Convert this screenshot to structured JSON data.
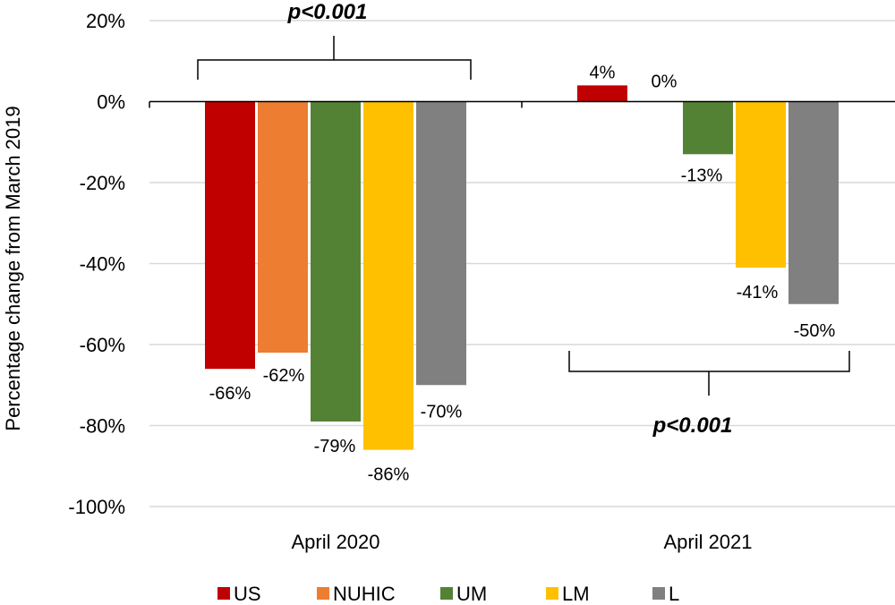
{
  "chart_data": {
    "type": "bar",
    "title": "",
    "xlabel": "",
    "ylabel": "Percentage change from March 2019",
    "ylim": [
      -100,
      20
    ],
    "yticks": [
      20,
      0,
      -20,
      -40,
      -60,
      -80,
      -100
    ],
    "ytick_labels": [
      "20%",
      "0%",
      "-20%",
      "-40%",
      "-60%",
      "-80%",
      "-100%"
    ],
    "grid": true,
    "legend_position": "bottom",
    "categories": [
      "April 2020",
      "April 2021"
    ],
    "series": [
      {
        "name": "US",
        "color": "#C00000",
        "values": [
          -66,
          4
        ],
        "labels": [
          "-66%",
          "4%"
        ]
      },
      {
        "name": "NUHIC",
        "color": "#ED7D31",
        "values": [
          -62,
          0
        ],
        "labels": [
          "-62%",
          "0%"
        ]
      },
      {
        "name": "UM",
        "color": "#548235",
        "values": [
          -79,
          -13
        ],
        "labels": [
          "-79%",
          "-13%"
        ]
      },
      {
        "name": "LM",
        "color": "#FFC000",
        "values": [
          -86,
          -41
        ],
        "labels": [
          "-86%",
          "-41%"
        ]
      },
      {
        "name": "L",
        "color": "#808080",
        "values": [
          -70,
          -50
        ],
        "labels": [
          "-70%",
          "-50%"
        ]
      }
    ],
    "annotations": [
      {
        "text": "p<0.001",
        "category": "April 2020",
        "position": "above"
      },
      {
        "text": "p<0.001",
        "category": "April 2021",
        "position": "below"
      }
    ]
  }
}
